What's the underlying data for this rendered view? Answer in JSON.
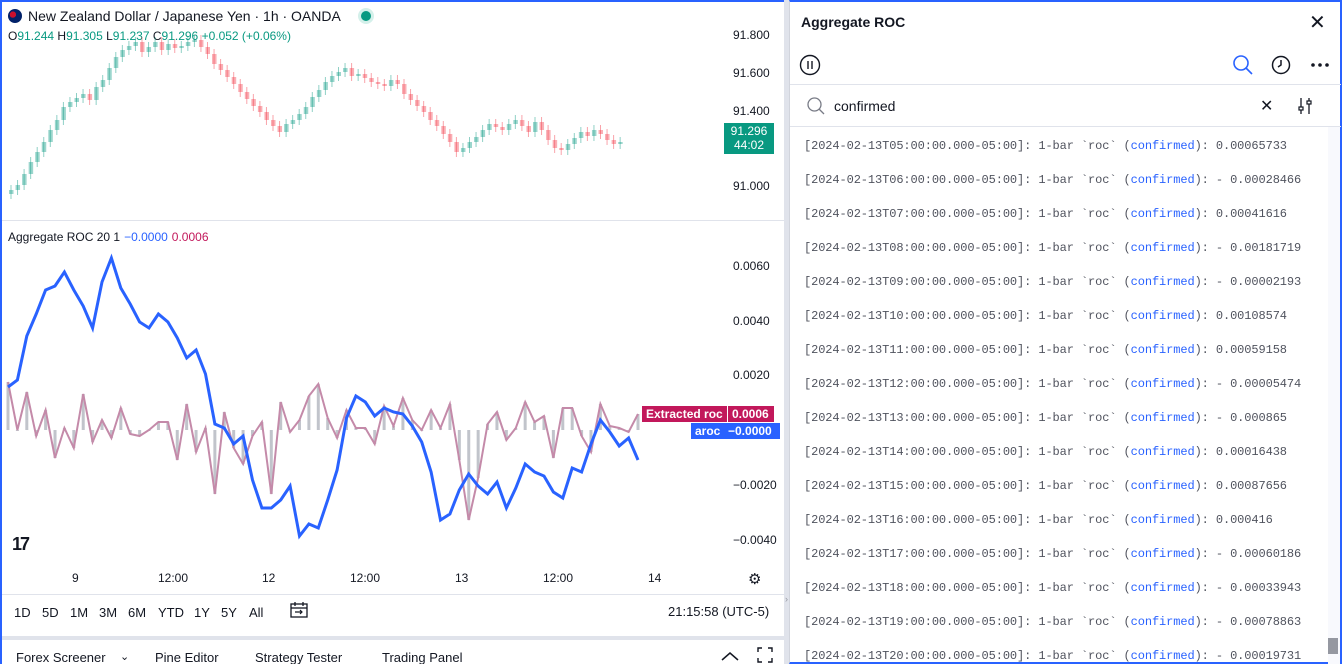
{
  "chart": {
    "title": "New Zealand Dollar / Japanese Yen · 1h · OANDA",
    "ohlc": {
      "o_key": "O",
      "o": "91.244",
      "h_key": "H",
      "h": "91.305",
      "l_key": "L",
      "l": "91.237",
      "c_key": "C",
      "c": "91.296",
      "change": "+0.052 (+0.06%)"
    },
    "price_ticks": [
      "91.800",
      "91.600",
      "91.400",
      "91.000"
    ],
    "last_price": "91.296",
    "countdown": "44:02",
    "indicator_legend": {
      "name": "Aggregate ROC 20 1",
      "val_aroc": "−0.0000",
      "val_extracted": "0.0006"
    },
    "ind_ticks": [
      "0.0060",
      "0.0040",
      "0.0020",
      "−0.0020",
      "−0.0040"
    ],
    "tags": {
      "extracted_label": "Extracted roc",
      "extracted_val": "0.0006",
      "aroc_label": "aroc",
      "aroc_val": "−0.0000"
    },
    "time_ticks": [
      "9",
      "12:00",
      "12",
      "12:00",
      "13",
      "12:00",
      "14"
    ],
    "ranges": [
      "1D",
      "5D",
      "1M",
      "3M",
      "6M",
      "YTD",
      "1Y",
      "5Y",
      "All"
    ],
    "clock": "21:15:58 (UTC-5)",
    "colors": {
      "up": "#089981",
      "down": "#f23645",
      "aroc": "#2962ff",
      "extracted": "#c2185b"
    }
  },
  "bottom_tabs": [
    "Forex Screener",
    "Pine Editor",
    "Strategy Tester",
    "Trading Panel"
  ],
  "panel": {
    "title": "Aggregate ROC",
    "search_value": "confirmed",
    "logs": [
      {
        "prefix": "[2024-02-13T05:00:00.000-05:00]: 1-bar `roc` (",
        "tag": "confirmed",
        "suffix": "): 0.00065733"
      },
      {
        "prefix": "[2024-02-13T06:00:00.000-05:00]: 1-bar `roc` (",
        "tag": "confirmed",
        "suffix": "): - 0.00028466"
      },
      {
        "prefix": "[2024-02-13T07:00:00.000-05:00]: 1-bar `roc` (",
        "tag": "confirmed",
        "suffix": "): 0.00041616"
      },
      {
        "prefix": "[2024-02-13T08:00:00.000-05:00]: 1-bar `roc` (",
        "tag": "confirmed",
        "suffix": "): - 0.00181719"
      },
      {
        "prefix": "[2024-02-13T09:00:00.000-05:00]: 1-bar `roc` (",
        "tag": "confirmed",
        "suffix": "): - 0.00002193"
      },
      {
        "prefix": "[2024-02-13T10:00:00.000-05:00]: 1-bar `roc` (",
        "tag": "confirmed",
        "suffix": "): 0.00108574"
      },
      {
        "prefix": "[2024-02-13T11:00:00.000-05:00]: 1-bar `roc` (",
        "tag": "confirmed",
        "suffix": "): 0.00059158"
      },
      {
        "prefix": "[2024-02-13T12:00:00.000-05:00]: 1-bar `roc` (",
        "tag": "confirmed",
        "suffix": "): - 0.00005474"
      },
      {
        "prefix": "[2024-02-13T13:00:00.000-05:00]: 1-bar `roc` (",
        "tag": "confirmed",
        "suffix": "): - 0.000865"
      },
      {
        "prefix": "[2024-02-13T14:00:00.000-05:00]: 1-bar `roc` (",
        "tag": "confirmed",
        "suffix": "): 0.00016438"
      },
      {
        "prefix": "[2024-02-13T15:00:00.000-05:00]: 1-bar `roc` (",
        "tag": "confirmed",
        "suffix": "): 0.00087656"
      },
      {
        "prefix": "[2024-02-13T16:00:00.000-05:00]: 1-bar `roc` (",
        "tag": "confirmed",
        "suffix": "): 0.000416"
      },
      {
        "prefix": "[2024-02-13T17:00:00.000-05:00]: 1-bar `roc` (",
        "tag": "confirmed",
        "suffix": "): - 0.00060186"
      },
      {
        "prefix": "[2024-02-13T18:00:00.000-05:00]: 1-bar `roc` (",
        "tag": "confirmed",
        "suffix": "): - 0.00033943"
      },
      {
        "prefix": "[2024-02-13T19:00:00.000-05:00]: 1-bar `roc` (",
        "tag": "confirmed",
        "suffix": "): - 0.00078863"
      },
      {
        "prefix": "[2024-02-13T20:00:00.000-05:00]: 1-bar `roc` (",
        "tag": "confirmed",
        "suffix": "): - 0.00019731"
      }
    ]
  }
}
